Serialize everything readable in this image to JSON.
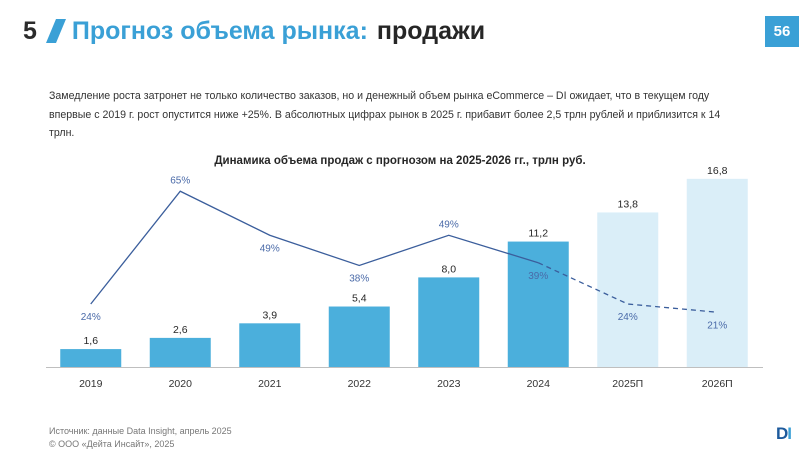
{
  "header": {
    "slide_number": "5",
    "title_accent": "Прогноз объема рынка:",
    "title_rest": "продажи",
    "page_number": "56"
  },
  "intro_text": "Замедление роста затронет не только количество заказов, но и денежный объем рынка eCommerce – DI ожидает, что в текущем году впервые с 2019 г. рост опустится ниже +25%. В абсолютных цифрах рынок в 2025 г. прибавит более 2,5 трлн рублей и приблизится к 14 трлн.",
  "chart_data": {
    "type": "bar",
    "title": "Динамика объема продаж с прогнозом на 2025-2026 гг., трлн руб.",
    "categories": [
      "2019",
      "2020",
      "2021",
      "2022",
      "2023",
      "2024",
      "2025П",
      "2026П"
    ],
    "values": [
      1.6,
      2.6,
      3.9,
      5.4,
      8.0,
      11.2,
      13.8,
      16.8
    ],
    "value_labels": [
      "1,6",
      "2,6",
      "3,9",
      "5,4",
      "8,0",
      "11,2",
      "13,8",
      "16,8"
    ],
    "forecast": [
      false,
      false,
      false,
      false,
      false,
      false,
      true,
      true
    ],
    "growth": [
      24,
      65,
      49,
      38,
      49,
      39,
      24,
      21
    ],
    "growth_labels": [
      "24%",
      "65%",
      "49%",
      "38%",
      "49%",
      "39%",
      "24%",
      "21%"
    ],
    "ylim": [
      0,
      18
    ],
    "growth_range": [
      0,
      80
    ],
    "colors": {
      "bar": "#4bafdc",
      "bar_forecast": "#daeef8",
      "line": "#3b5e9c",
      "line_label": "#4a6aa8",
      "axis": "#bfbfbf"
    }
  },
  "footer": {
    "source": "Источник: данные Data Insight, апрель 2025",
    "copyright": "© ООО «Дейта Инсайт», 2025"
  },
  "logo": {
    "d": "D",
    "i": "I"
  }
}
